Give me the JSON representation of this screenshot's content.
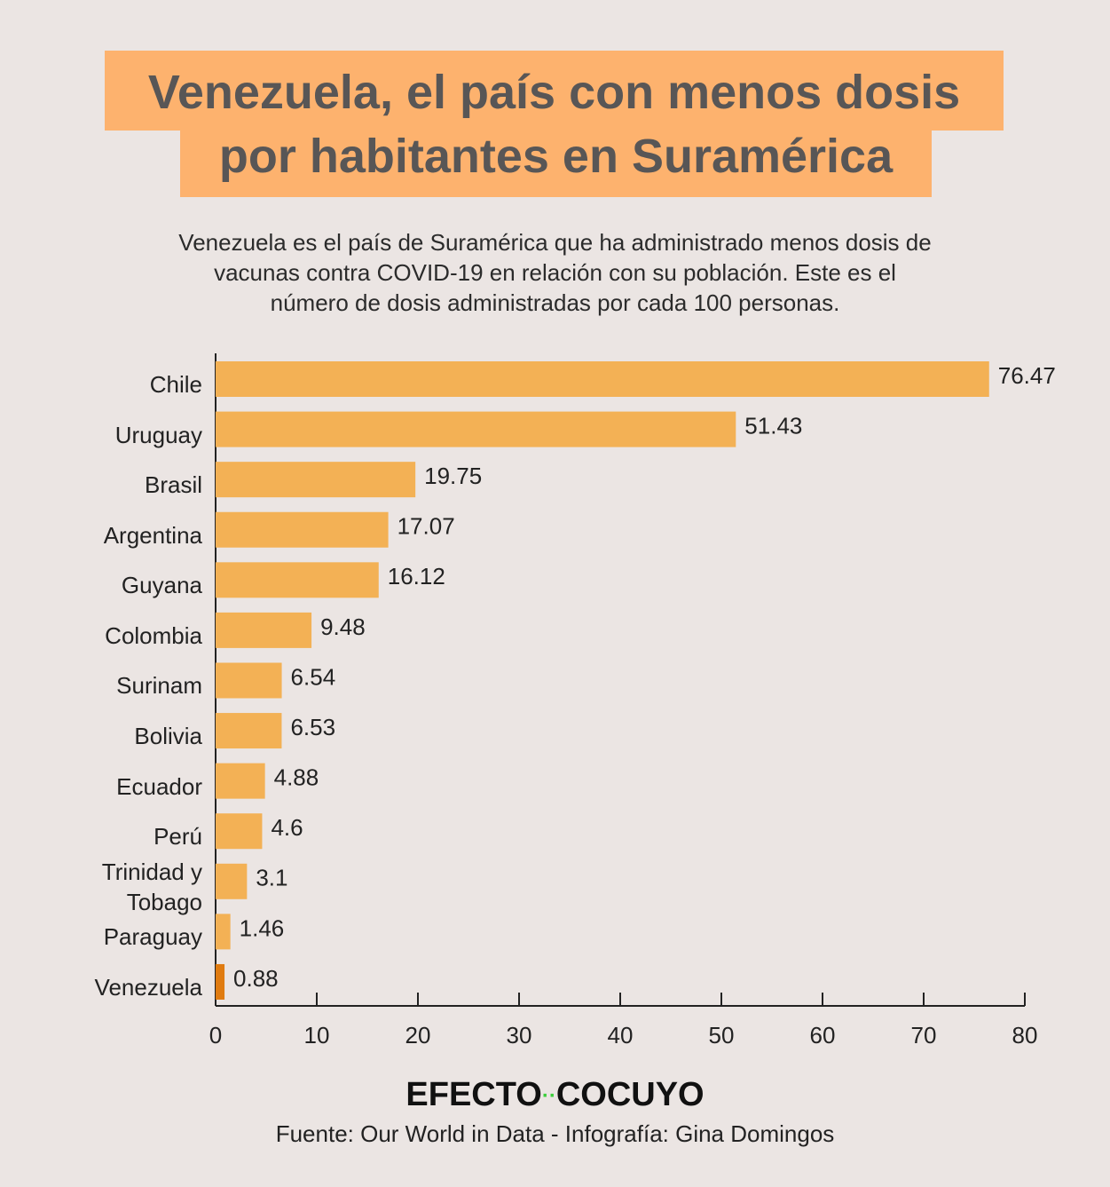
{
  "chart_data": {
    "type": "bar",
    "orientation": "horizontal",
    "title": [
      "Venezuela, el país con menos dosis",
      "por habitantes en Suramérica"
    ],
    "subtitle": [
      "Venezuela es el país de Suramérica que ha administrado menos dosis de",
      "vacunas contra COVID-19 en relación con su población. Este es el",
      "número de dosis administradas por cada 100 personas."
    ],
    "categories": [
      "Chile",
      "Uruguay",
      "Brasil",
      "Argentina",
      "Guyana",
      "Colombia",
      "Surinam",
      "Bolivia",
      "Ecuador",
      "Perú",
      "Trinidad y Tobago",
      "Paraguay",
      "Venezuela"
    ],
    "values": [
      76.47,
      51.43,
      19.75,
      17.07,
      16.12,
      9.48,
      6.54,
      6.53,
      4.88,
      4.6,
      3.1,
      1.46,
      0.88
    ],
    "colors": [
      "#f3b155",
      "#f3b155",
      "#f3b155",
      "#f3b155",
      "#f3b155",
      "#f3b155",
      "#f3b155",
      "#f3b155",
      "#f3b155",
      "#f3b155",
      "#f3b155",
      "#f3b155",
      "#e07b10"
    ],
    "xlim": [
      0,
      80
    ],
    "xticks": [
      0,
      10,
      20,
      30,
      40,
      50,
      60,
      70,
      80
    ],
    "grid": false,
    "logo": [
      "EFECTO",
      "COCUYO"
    ],
    "source": "Fuente: Our World in Data - Infografía: Gina Domingos"
  }
}
